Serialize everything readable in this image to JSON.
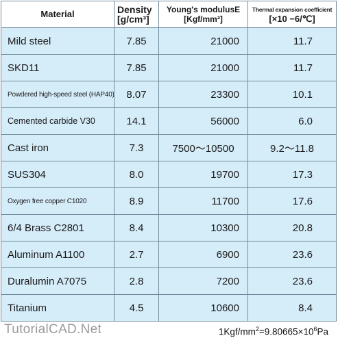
{
  "header": {
    "material": "Material",
    "density": "Density",
    "density_unit": "[g/cm³]",
    "modulus": "Young's modulusE",
    "modulus_unit": "[Kgf/mm²]",
    "thermal": "Thermal expansion coefficient",
    "thermal_unit": "[×10 −6/℃]"
  },
  "rows": [
    {
      "material": "Mild steel",
      "density": "7.85",
      "modulus": "21000",
      "thermal": "11.7"
    },
    {
      "material": "SKD11",
      "density": "7.85",
      "modulus": "21000",
      "thermal": "11.7"
    },
    {
      "material": "Powdered high-speed steel  (HAP40)  ▪",
      "density": "8.07",
      "modulus": "23300",
      "thermal": "10.1"
    },
    {
      "material": "Cemented carbide V30",
      "density": "14.1",
      "modulus": "56000",
      "thermal": "6.0"
    },
    {
      "material": "Cast iron",
      "density": "7.3",
      "modulus": "7500～10500",
      "thermal": "9.2～11.8"
    },
    {
      "material": "SUS304",
      "density": "8.0",
      "modulus": "19700",
      "thermal": "17.3"
    },
    {
      "material": "Oxygen free copper    C1020",
      "density": "8.9",
      "modulus": "11700",
      "thermal": "17.6"
    },
    {
      "material": "6/4 Brass    C2801",
      "density": "8.4",
      "modulus": "10300",
      "thermal": "20.8"
    },
    {
      "material": "Aluminum    A1100",
      "density": "2.7",
      "modulus": "6900",
      "thermal": "23.6"
    },
    {
      "material": "Duralumin    A7075",
      "density": "2.8",
      "modulus": "7200",
      "thermal": "23.6"
    },
    {
      "material": "Titanium",
      "density": "4.5",
      "modulus": "10600",
      "thermal": "8.4"
    }
  ],
  "watermark": "TutorialCAD.Net",
  "note": {
    "lhs": "1Kgf/mm",
    "lhs_exp": "2",
    "mid": "=9.80665×10",
    "rhs_exp": "6",
    "unit": "Pa"
  }
}
